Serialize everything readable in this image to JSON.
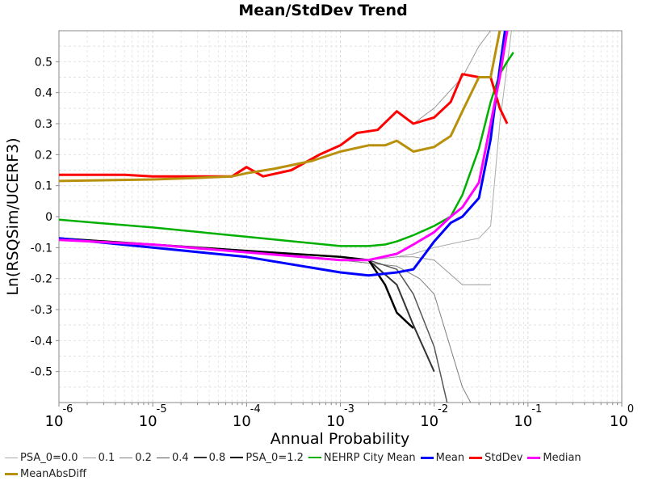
{
  "chart_data": {
    "type": "line",
    "title": "Mean/StdDev Trend",
    "xlabel": "Annual Probability",
    "ylabel": "Ln(RSQSim/UCERF3)",
    "x_scale": "log",
    "xlim": [
      1e-06,
      1
    ],
    "ylim": [
      -0.6,
      0.6
    ],
    "x_tick_labels": [
      {
        "base": "10",
        "exp": "-6"
      },
      {
        "base": "10",
        "exp": "-5"
      },
      {
        "base": "10",
        "exp": "-4"
      },
      {
        "base": "10",
        "exp": "-3"
      },
      {
        "base": "10",
        "exp": "-2"
      },
      {
        "base": "10",
        "exp": "-1"
      },
      {
        "base": "10",
        "exp": "0"
      }
    ],
    "y_ticks": [
      -0.5,
      -0.4,
      -0.3,
      -0.2,
      -0.1,
      0,
      0.1,
      0.2,
      0.3,
      0.4,
      0.5
    ],
    "y_tick_labels": [
      "-0.5",
      "-0.4",
      "-0.3",
      "-0.2",
      "-0.1",
      "0",
      "0.1",
      "0.2",
      "0.3",
      "0.4",
      "0.5"
    ],
    "grid": true,
    "legend_position": "bottom",
    "series": [
      {
        "name": "PSA_0=0.0",
        "color": "#aaaaaa",
        "width": 1,
        "x": [
          1e-06,
          1e-05,
          0.0001,
          0.001,
          0.002,
          0.004,
          0.006,
          0.01,
          0.02,
          0.03,
          0.04,
          0.05,
          0.07
        ],
        "y": [
          -0.07,
          -0.09,
          -0.11,
          -0.14,
          -0.14,
          -0.13,
          -0.12,
          -0.1,
          -0.08,
          -0.07,
          -0.03,
          0.3,
          0.65
        ]
      },
      {
        "name": "0.1",
        "color": "#999999",
        "width": 1,
        "x": [
          1e-06,
          1e-05,
          0.0001,
          0.001,
          0.002,
          0.004,
          0.006,
          0.01,
          0.02,
          0.03,
          0.04,
          0.006,
          0.01,
          0.02,
          0.03,
          0.04
        ],
        "y": [
          -0.07,
          -0.09,
          -0.11,
          -0.14,
          -0.14,
          -0.13,
          -0.13,
          -0.14,
          -0.22,
          -0.22,
          -0.22,
          0.3,
          0.35,
          0.45,
          0.55,
          0.6
        ]
      },
      {
        "name": "0.2",
        "color": "#7f7f7f",
        "width": 1,
        "x": [
          1e-06,
          1e-05,
          0.0001,
          0.001,
          0.002,
          0.004,
          0.007,
          0.01,
          0.02,
          0.03
        ],
        "y": [
          -0.07,
          -0.09,
          -0.11,
          -0.14,
          -0.15,
          -0.16,
          -0.2,
          -0.25,
          -0.55,
          -0.65
        ]
      },
      {
        "name": "0.4",
        "color": "#555555",
        "width": 1.5,
        "x": [
          1e-06,
          1e-05,
          0.0001,
          0.001,
          0.002,
          0.004,
          0.006,
          0.01,
          0.015
        ],
        "y": [
          -0.07,
          -0.09,
          -0.11,
          -0.13,
          -0.14,
          -0.17,
          -0.25,
          -0.42,
          -0.65
        ]
      },
      {
        "name": "0.8",
        "color": "#333333",
        "width": 2,
        "x": [
          1e-06,
          1e-05,
          0.0001,
          0.001,
          0.002,
          0.004,
          0.006,
          0.01
        ],
        "y": [
          -0.07,
          -0.09,
          -0.11,
          -0.13,
          -0.14,
          -0.22,
          -0.35,
          -0.5
        ]
      },
      {
        "name": "PSA_0=1.2",
        "color": "#000000",
        "width": 2.5,
        "x": [
          1e-06,
          1e-05,
          0.0001,
          0.001,
          0.002,
          0.003,
          0.004,
          0.006
        ],
        "y": [
          -0.07,
          -0.09,
          -0.11,
          -0.13,
          -0.14,
          -0.22,
          -0.31,
          -0.36
        ]
      },
      {
        "name": "NEHRP City Mean",
        "color": "#00b000",
        "width": 2.5,
        "x": [
          1e-06,
          1e-05,
          0.0001,
          0.001,
          0.002,
          0.003,
          0.004,
          0.006,
          0.01,
          0.015,
          0.02,
          0.03,
          0.04,
          0.05,
          0.06,
          0.07
        ],
        "y": [
          -0.01,
          -0.035,
          -0.065,
          -0.095,
          -0.095,
          -0.09,
          -0.08,
          -0.06,
          -0.03,
          0.0,
          0.07,
          0.22,
          0.37,
          0.46,
          0.5,
          0.53
        ]
      },
      {
        "name": "Mean",
        "color": "#0000ff",
        "width": 3,
        "x": [
          1e-06,
          1e-05,
          0.0001,
          0.001,
          0.002,
          0.004,
          0.006,
          0.008,
          0.01,
          0.015,
          0.02,
          0.03,
          0.04,
          0.05,
          0.06,
          0.07
        ],
        "y": [
          -0.07,
          -0.1,
          -0.13,
          -0.18,
          -0.19,
          -0.18,
          -0.17,
          -0.12,
          -0.08,
          -0.02,
          0.0,
          0.06,
          0.25,
          0.48,
          0.65,
          0.8
        ]
      },
      {
        "name": "StdDev",
        "color": "#ff0000",
        "width": 3,
        "x": [
          1e-06,
          5e-06,
          1e-05,
          3e-05,
          7e-05,
          0.0001,
          0.00015,
          0.0003,
          0.0006,
          0.001,
          0.0015,
          0.0025,
          0.004,
          0.006,
          0.01,
          0.015,
          0.02,
          0.03,
          0.04,
          0.05,
          0.06
        ],
        "y": [
          0.135,
          0.135,
          0.13,
          0.13,
          0.13,
          0.16,
          0.13,
          0.15,
          0.2,
          0.23,
          0.27,
          0.28,
          0.34,
          0.3,
          0.32,
          0.37,
          0.46,
          0.45,
          0.45,
          0.35,
          0.3
        ]
      },
      {
        "name": "Median",
        "color": "#ff00ff",
        "width": 3,
        "x": [
          1e-06,
          1e-05,
          0.0001,
          0.001,
          0.002,
          0.004,
          0.006,
          0.01,
          0.015,
          0.02,
          0.03,
          0.04,
          0.05,
          0.06,
          0.07
        ],
        "y": [
          -0.075,
          -0.09,
          -0.115,
          -0.14,
          -0.14,
          -0.12,
          -0.09,
          -0.05,
          0.0,
          0.03,
          0.11,
          0.3,
          0.45,
          0.6,
          0.75
        ]
      },
      {
        "name": "MeanAbsDiff",
        "color": "#b8900b",
        "width": 3,
        "x": [
          1e-06,
          1e-05,
          3e-05,
          7e-05,
          0.0001,
          0.0002,
          0.0005,
          0.001,
          0.002,
          0.003,
          0.004,
          0.006,
          0.01,
          0.015,
          0.02,
          0.03,
          0.04,
          0.05,
          0.06
        ],
        "y": [
          0.115,
          0.12,
          0.125,
          0.13,
          0.14,
          0.155,
          0.18,
          0.21,
          0.23,
          0.23,
          0.245,
          0.21,
          0.225,
          0.26,
          0.34,
          0.45,
          0.45,
          0.6,
          0.7
        ]
      }
    ]
  }
}
